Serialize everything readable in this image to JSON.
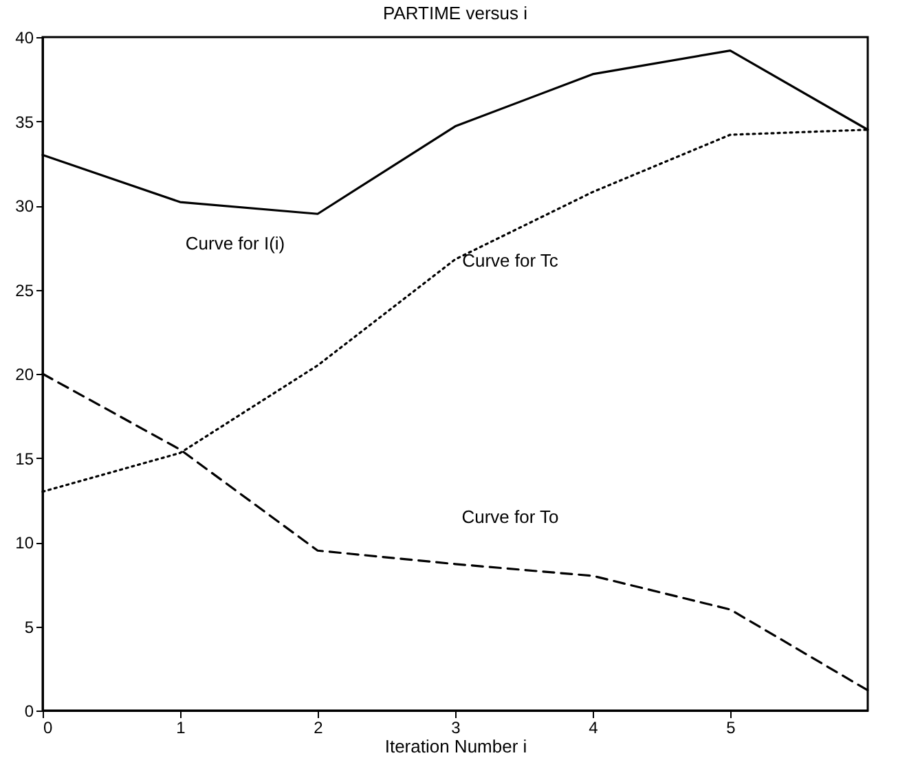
{
  "chart_data": {
    "type": "line",
    "title": "PARTIME versus i",
    "xlabel": "Iteration Number i",
    "x": [
      0,
      1,
      2,
      3,
      4,
      5,
      6
    ],
    "series": [
      {
        "color": "#000000",
        "line_style": "solid",
        "values": [
          33,
          30.2,
          29.5,
          34.7,
          37.8,
          39.2,
          34.5
        ]
      },
      {
        "color": "#000000",
        "line_style": "dotted",
        "values": [
          13,
          15.3,
          20.5,
          26.8,
          30.8,
          34.2,
          34.5
        ]
      },
      {
        "color": "#000000",
        "line_style": "dashed",
        "values": [
          20,
          15.5,
          9.5,
          8.7,
          8,
          6,
          1.2
        ]
      }
    ],
    "annotations": [
      "Curve for I(i)",
      "Curve for Tc",
      "Curve for To"
    ],
    "xlim": [
      0,
      6
    ],
    "xticks": [
      0,
      1,
      2,
      3,
      4,
      5
    ],
    "ylim": [
      0,
      40
    ],
    "yticks": [
      0,
      5,
      10,
      15,
      20,
      25,
      30,
      35,
      40
    ],
    "grid": false,
    "marker": "none"
  }
}
